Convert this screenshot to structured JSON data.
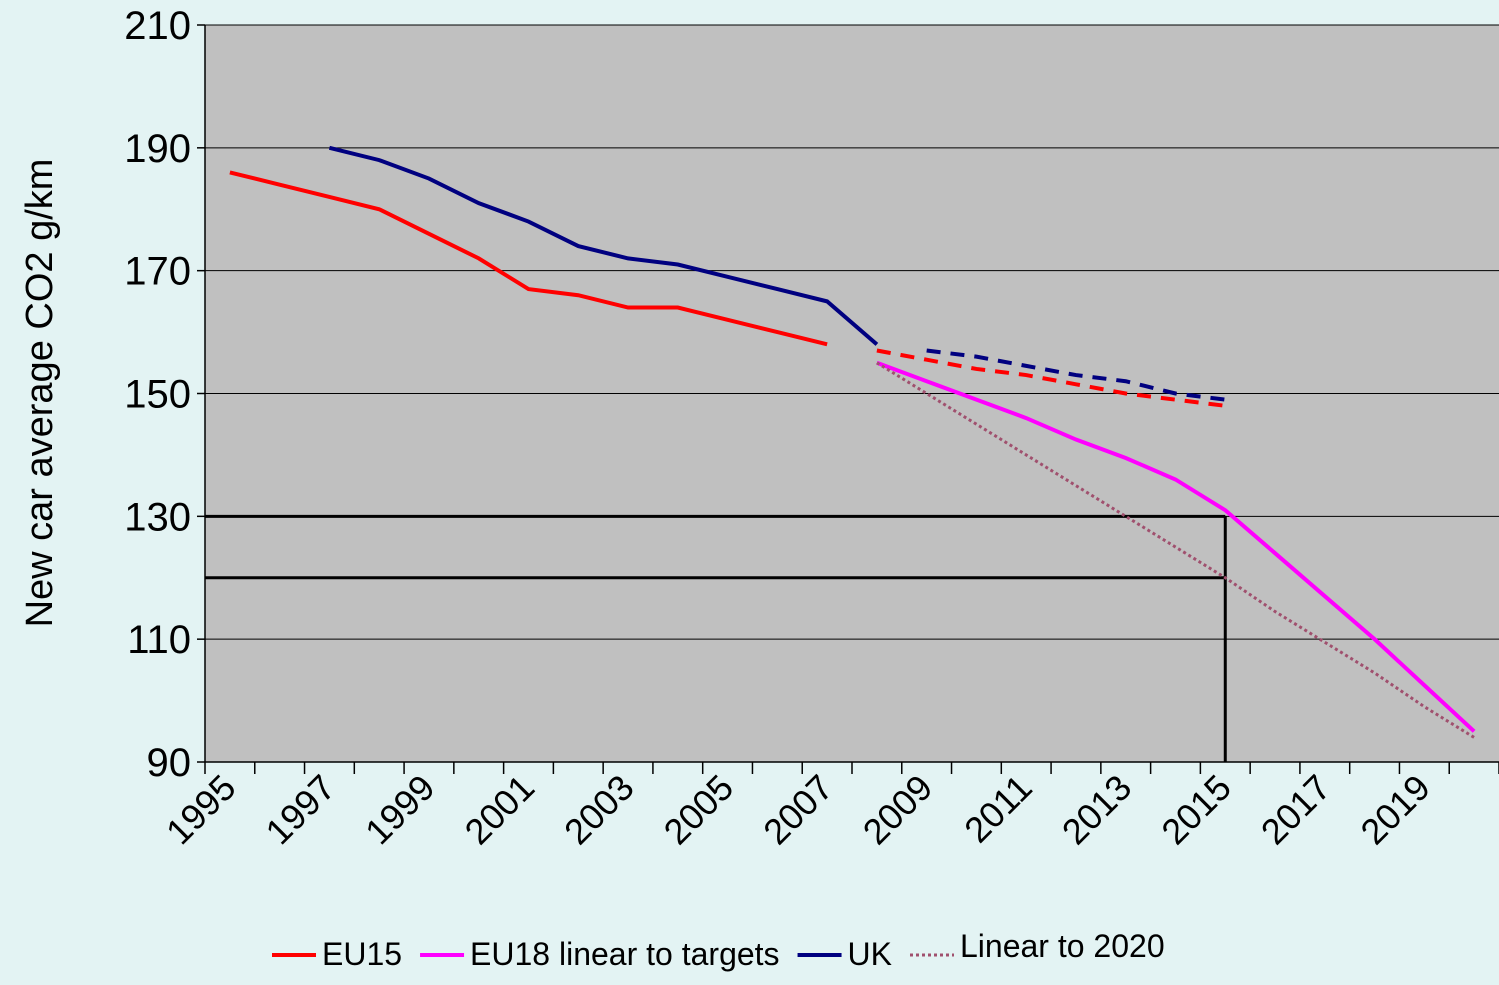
{
  "chart_data": {
    "type": "line",
    "y_label": "New car average CO2 g/km",
    "categories": [
      "1995",
      null,
      "1997",
      null,
      "1999",
      null,
      "2001",
      null,
      "2003",
      null,
      "2005",
      null,
      "2007",
      null,
      "2009",
      null,
      "2011",
      null,
      "2013",
      null,
      "2015",
      null,
      "2017",
      null,
      "2019",
      null
    ],
    "series": [
      {
        "name": "EU15",
        "color": "#ff0000",
        "style": "solid",
        "values": [
          186,
          184,
          182,
          180,
          176,
          172,
          167,
          166,
          164,
          164,
          162,
          160,
          158,
          null,
          null,
          null,
          null,
          null,
          null,
          null,
          null,
          null,
          null,
          null,
          null,
          null
        ],
        "projected_values": [
          null,
          null,
          null,
          null,
          null,
          null,
          null,
          null,
          null,
          null,
          null,
          null,
          null,
          157,
          155.5,
          154,
          153,
          151.5,
          150,
          149,
          148,
          null,
          null,
          null,
          null,
          null
        ]
      },
      {
        "name": "EU18 linear to targets",
        "color": "#ff00ff",
        "style": "solid",
        "values": [
          null,
          null,
          null,
          null,
          null,
          null,
          null,
          null,
          null,
          null,
          null,
          null,
          null,
          155,
          152,
          149,
          146,
          142.5,
          139.5,
          136,
          131,
          124,
          117,
          110,
          102.5,
          95
        ]
      },
      {
        "name": "UK",
        "color": "#000080",
        "style": "solid",
        "values": [
          null,
          null,
          190,
          188,
          185,
          181,
          178,
          174,
          172,
          171,
          169,
          167,
          165,
          158,
          null,
          null,
          null,
          null,
          null,
          null,
          null,
          null,
          null,
          null,
          null,
          null
        ],
        "projected_values": [
          null,
          null,
          null,
          null,
          null,
          null,
          null,
          null,
          null,
          null,
          null,
          null,
          null,
          null,
          157,
          156,
          154.5,
          153,
          152,
          150,
          149,
          null,
          null,
          null,
          null,
          null
        ]
      },
      {
        "name": "Linear to 2020",
        "color": "#a0506e",
        "style": "dotted",
        "values": [
          null,
          null,
          null,
          null,
          null,
          null,
          null,
          null,
          null,
          null,
          null,
          null,
          null,
          155,
          150,
          145,
          140,
          135,
          130,
          125,
          120,
          114.5,
          109.5,
          104.5,
          99,
          94
        ]
      }
    ],
    "target_lines": {
      "y": [
        130,
        120
      ],
      "x_index": 20
    },
    "ylim": [
      90,
      210
    ],
    "yticks": [
      90,
      110,
      130,
      150,
      170,
      190,
      210
    ],
    "grid": true,
    "plot_background": "#c0c0c0",
    "legend": "bottom"
  }
}
